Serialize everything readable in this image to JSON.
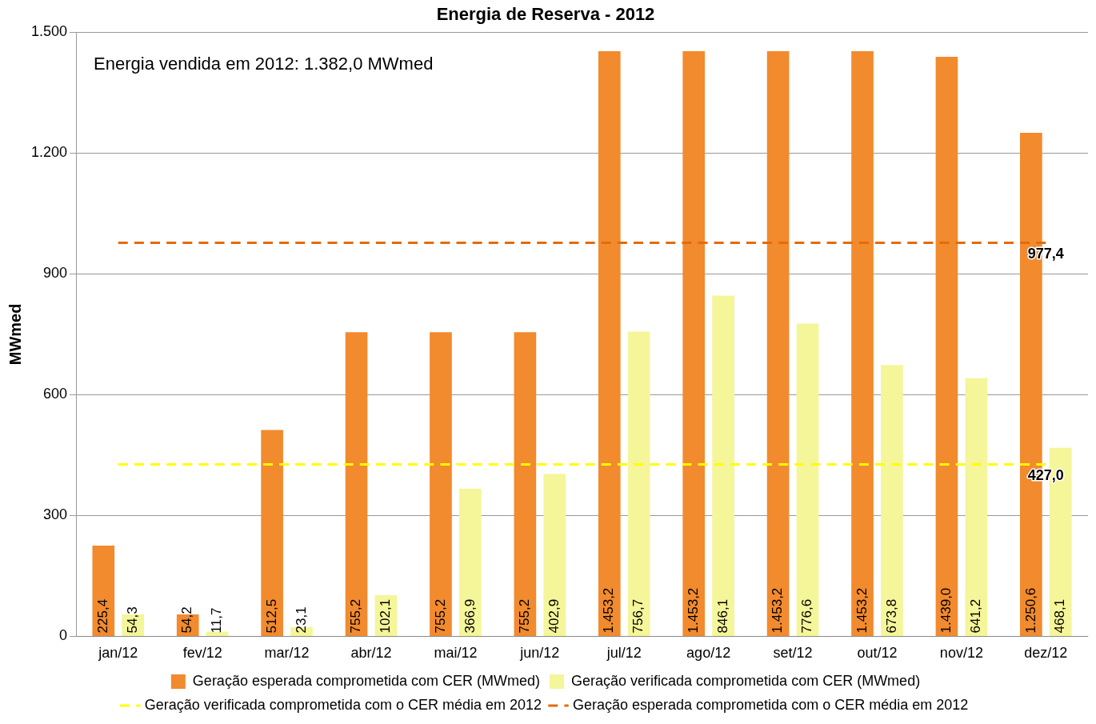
{
  "chart_data": {
    "type": "bar",
    "title": "Energia de Reserva - 2012",
    "ylabel": "MWmed",
    "categories": [
      "jan/12",
      "fev/12",
      "mar/12",
      "abr/12",
      "mai/12",
      "jun/12",
      "jul/12",
      "ago/12",
      "set/12",
      "out/12",
      "nov/12",
      "dez/12"
    ],
    "series": [
      {
        "name": "Geração esperada comprometida com CER (MWmed)",
        "color": "#f28a2e",
        "values": [
          225.4,
          54.2,
          512.5,
          755.2,
          755.2,
          755.2,
          1453.2,
          1453.2,
          1453.2,
          1453.2,
          1439.0,
          1250.6
        ],
        "value_labels": [
          "225,4",
          "54,2",
          "512,5",
          "755,2",
          "755,2",
          "755,2",
          "1.453,2",
          "1.453,2",
          "1.453,2",
          "1.453,2",
          "1.439,0",
          "1.250,6"
        ]
      },
      {
        "name": "Geração verificada comprometida com CER (MWmed)",
        "color": "#f5f59a",
        "values": [
          54.3,
          11.7,
          23.1,
          102.1,
          366.9,
          402.9,
          756.7,
          846.1,
          776.6,
          673.8,
          641.2,
          468.1
        ],
        "value_labels": [
          "54,3",
          "11,7",
          "23,1",
          "102,1",
          "366,9",
          "402,9",
          "756,7",
          "846,1",
          "776,6",
          "673,8",
          "641,2",
          "468,1"
        ]
      },
      {
        "name": "Geração verificada comprometida com o CER média em 2012",
        "type": "line",
        "line_style": "dashed",
        "marker": "none",
        "color": "#ffff00",
        "values": [
          427.0,
          427.0,
          427.0,
          427.0,
          427.0,
          427.0,
          427.0,
          427.0,
          427.0,
          427.0,
          427.0,
          427.0
        ]
      },
      {
        "name": "Geração esperada comprometida com o CER média em 2012",
        "type": "line",
        "line_style": "dashed",
        "marker": "none",
        "color": "#e36c0a",
        "values": [
          977.4,
          977.4,
          977.4,
          977.4,
          977.4,
          977.4,
          977.4,
          977.4,
          977.4,
          977.4,
          977.4,
          977.4
        ]
      }
    ],
    "ylim": [
      0,
      1500
    ],
    "yticks": [
      0,
      300,
      600,
      900,
      {
        "value": 1200,
        "label": "1.200"
      },
      {
        "value": 1500,
        "label": "1.500"
      }
    ],
    "grid": "y",
    "legend": "bottom",
    "annotations": [
      "Energia vendida em 2012: 1.382,0 MWmed",
      {
        "text": "977,4",
        "x": "dez/12",
        "y": 977.4
      },
      {
        "text": "427,0",
        "x": "dez/12",
        "y": 427.0
      }
    ]
  }
}
